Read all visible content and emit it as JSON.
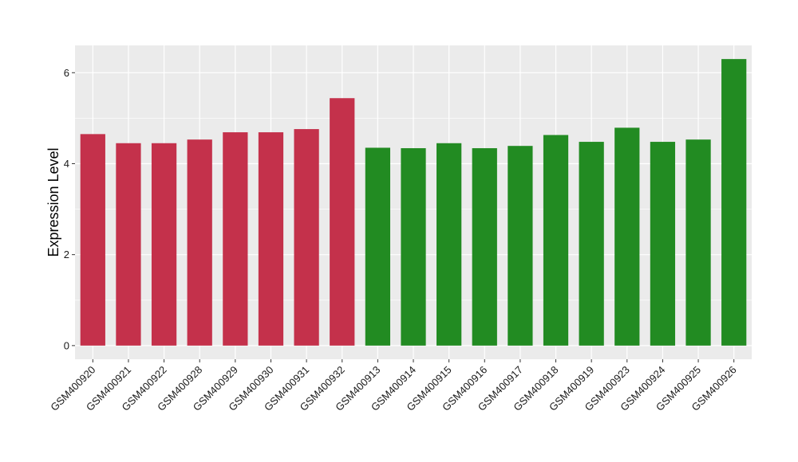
{
  "chart_data": {
    "type": "bar",
    "title": "",
    "xlabel": "",
    "ylabel": "Expression Level",
    "ylim": [
      -0.3,
      6.6
    ],
    "yticks": [
      0,
      2,
      4,
      6
    ],
    "grid": true,
    "legend": "none",
    "panel_color": "#ebebeb",
    "grid_color": "#ffffff",
    "categories": [
      "GSM400920",
      "GSM400921",
      "GSM400922",
      "GSM400928",
      "GSM400929",
      "GSM400930",
      "GSM400931",
      "GSM400932",
      "GSM400913",
      "GSM400914",
      "GSM400915",
      "GSM400916",
      "GSM400917",
      "GSM400918",
      "GSM400919",
      "GSM400923",
      "GSM400924",
      "GSM400925",
      "GSM400926"
    ],
    "values": [
      4.65,
      4.45,
      4.45,
      4.53,
      4.69,
      4.69,
      4.76,
      5.44,
      4.35,
      4.34,
      4.45,
      4.34,
      4.39,
      4.63,
      4.48,
      4.79,
      4.48,
      4.53,
      6.3
    ],
    "groups": [
      "a",
      "a",
      "a",
      "a",
      "a",
      "a",
      "a",
      "a",
      "b",
      "b",
      "b",
      "b",
      "b",
      "b",
      "b",
      "b",
      "b",
      "b",
      "b"
    ],
    "group_colors": {
      "a": "#c4314b",
      "b": "#228b22"
    }
  }
}
